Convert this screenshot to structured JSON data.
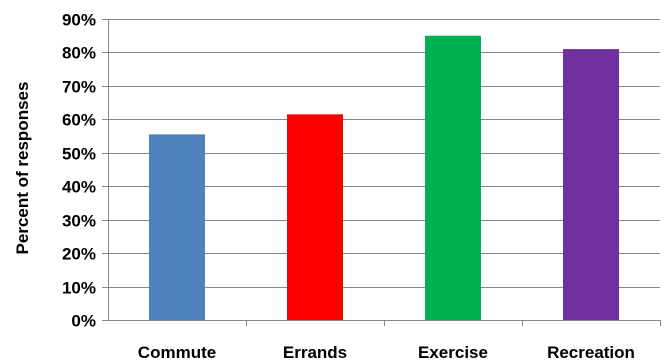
{
  "chart_data": {
    "type": "bar",
    "title": "",
    "xlabel": "",
    "ylabel": "Percent of responses",
    "categories": [
      "Commute",
      "Errands",
      "Exercise",
      "Recreation"
    ],
    "values": [
      55.5,
      61.5,
      85,
      81
    ],
    "colors": [
      "#4f81bd",
      "#ff0000",
      "#00b050",
      "#7030a0"
    ],
    "ylim": [
      0,
      90
    ],
    "yticks": [
      "0%",
      "10%",
      "20%",
      "30%",
      "40%",
      "50%",
      "60%",
      "70%",
      "80%",
      "90%"
    ],
    "grid": true,
    "legend": "none"
  }
}
